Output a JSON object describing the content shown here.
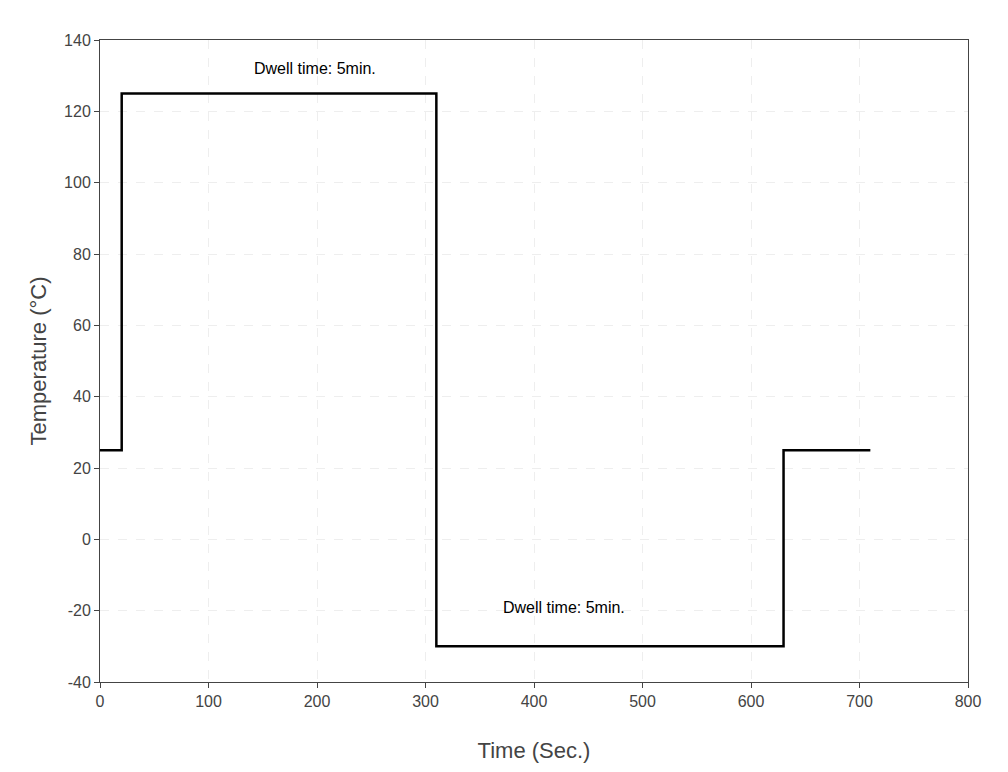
{
  "chart_data": {
    "type": "line",
    "x": [
      0,
      20,
      20,
      310,
      310,
      630,
      630,
      710,
      710
    ],
    "values": [
      25,
      25,
      125,
      125,
      -30,
      -30,
      25,
      25,
      25
    ],
    "color": "#000000",
    "xlim": [
      0,
      800
    ],
    "ylim": [
      -40,
      140
    ],
    "xticks": [
      0,
      100,
      200,
      300,
      400,
      500,
      600,
      700,
      800
    ],
    "yticks": [
      -40,
      -20,
      0,
      20,
      40,
      60,
      80,
      100,
      120,
      140
    ],
    "xlabel": "Time (Sec.)",
    "ylabel": "Temperature (°C)",
    "grid": true,
    "annotations": [
      {
        "text": "Dwell time: 5min.",
        "x": 140,
        "y": 129
      },
      {
        "text": "Dwell time: 5min.",
        "x": 370,
        "y": -22
      }
    ]
  }
}
